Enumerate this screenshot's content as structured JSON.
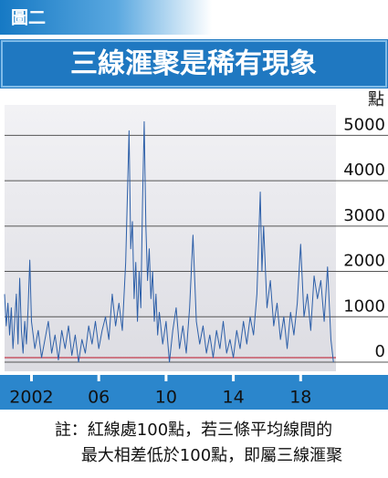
{
  "chart_data": {
    "type": "line",
    "label": "圖二",
    "title": "三線滙聚是稀有現象",
    "y_unit": "點",
    "note": [
      "註：紅線處100點，若三條平均線間的",
      "最大相差低於100點，即屬三線滙聚"
    ],
    "x": [
      2000.4,
      2000.5,
      2000.6,
      2000.7,
      2000.8,
      2000.9,
      2001.0,
      2001.1,
      2001.2,
      2001.3,
      2001.4,
      2001.5,
      2001.6,
      2001.7,
      2001.8,
      2001.9,
      2002.0,
      2002.2,
      2002.4,
      2002.6,
      2002.8,
      2003.0,
      2003.2,
      2003.4,
      2003.6,
      2003.8,
      2004.0,
      2004.2,
      2004.4,
      2004.6,
      2004.8,
      2005.0,
      2005.2,
      2005.4,
      2005.6,
      2005.8,
      2006.0,
      2006.2,
      2006.4,
      2006.6,
      2006.8,
      2007.0,
      2007.2,
      2007.4,
      2007.6,
      2007.8,
      2007.9,
      2008.0,
      2008.1,
      2008.2,
      2008.3,
      2008.4,
      2008.5,
      2008.6,
      2008.7,
      2008.8,
      2008.9,
      2009.0,
      2009.1,
      2009.2,
      2009.3,
      2009.4,
      2009.5,
      2009.6,
      2009.8,
      2010.0,
      2010.2,
      2010.4,
      2010.6,
      2010.8,
      2011.0,
      2011.2,
      2011.4,
      2011.6,
      2011.8,
      2012.0,
      2012.2,
      2012.4,
      2012.6,
      2012.8,
      2013.0,
      2013.2,
      2013.4,
      2013.6,
      2013.8,
      2014.0,
      2014.2,
      2014.4,
      2014.6,
      2014.8,
      2015.0,
      2015.2,
      2015.4,
      2015.6,
      2015.7,
      2015.8,
      2016.0,
      2016.2,
      2016.4,
      2016.6,
      2016.8,
      2017.0,
      2017.2,
      2017.4,
      2017.6,
      2017.8,
      2018.0,
      2018.2,
      2018.4,
      2018.6,
      2018.8,
      2019.0,
      2019.2,
      2019.4,
      2019.6,
      2019.8,
      2019.95
    ],
    "series": [
      {
        "color": "#2d5fa8",
        "values": [
          1500,
          800,
          1300,
          600,
          1200,
          300,
          900,
          1500,
          400,
          1850,
          700,
          200,
          900,
          400,
          1200,
          2250,
          900,
          300,
          700,
          100,
          500,
          900,
          200,
          600,
          50,
          700,
          300,
          800,
          150,
          600,
          0,
          500,
          200,
          800,
          400,
          900,
          300,
          700,
          1000,
          500,
          1500,
          800,
          1300,
          700,
          2200,
          5100,
          2500,
          3100,
          1400,
          2200,
          900,
          2000,
          1200,
          3500,
          5300,
          3000,
          1800,
          2500,
          1400,
          2000,
          900,
          1500,
          600,
          1100,
          400,
          900,
          0,
          700,
          1200,
          300,
          800,
          200,
          1200,
          2800,
          900,
          400,
          800,
          200,
          600,
          100,
          700,
          300,
          900,
          200,
          500,
          100,
          700,
          300,
          900,
          400,
          1000,
          600,
          1500,
          3750,
          2000,
          3000,
          1200,
          1800,
          800,
          1300,
          500,
          1000,
          300,
          1100,
          600,
          1300,
          2600,
          1000,
          1500,
          700,
          1900,
          1400,
          1800,
          900,
          2100,
          500,
          0
        ]
      }
    ],
    "threshold": {
      "value": 100,
      "color": "#c0283a"
    },
    "xlim": [
      2000.4,
      2020.1
    ],
    "xticks": [
      2002,
      {
        "value": 2006,
        "label": "06"
      },
      {
        "value": 2010,
        "label": "10"
      },
      {
        "value": 2014,
        "label": "14"
      },
      {
        "value": 2018,
        "label": "18"
      }
    ],
    "ylim": [
      -200,
      5670
    ],
    "yticks": [
      0,
      1000,
      2000,
      3000,
      4000,
      5000
    ],
    "grid": true
  }
}
